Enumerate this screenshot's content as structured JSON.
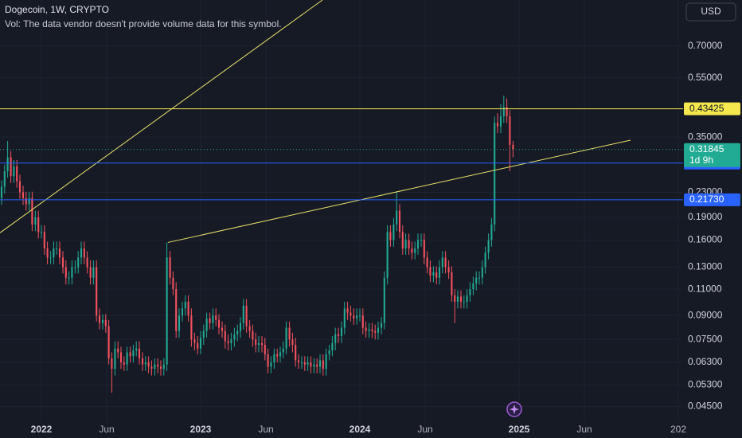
{
  "chart_data": {
    "type": "candlestick",
    "title": "Dogecoin, 1W, CRYPTO",
    "subtitle": "Vol: The data vendor doesn't provide volume data for this symbol.",
    "currency": "USD",
    "log_y": true,
    "grid": true,
    "up_color": "#22ab94",
    "down_color": "#f7525f",
    "xlim": [
      2021.74,
      2026.03
    ],
    "xticks": [
      2022,
      {
        "value": 2022.41,
        "label": "Jun"
      },
      2023,
      {
        "value": 2023.41,
        "label": "Jun"
      },
      2024,
      {
        "value": 2024.41,
        "label": "Jun"
      },
      2025,
      {
        "value": 2025.41,
        "label": "Jun"
      },
      {
        "value": 2026,
        "label": "202"
      }
    ],
    "ylim": [
      0.04,
      0.994
    ],
    "yticks": [
      {
        "value": 0.7,
        "label": "0.70000"
      },
      {
        "value": 0.55,
        "label": "0.55000"
      },
      {
        "value": 0.35,
        "label": "0.35000"
      },
      {
        "value": 0.23,
        "label": "0.23000"
      },
      {
        "value": 0.19,
        "label": "0.19000"
      },
      {
        "value": 0.16,
        "label": "0.16000"
      },
      {
        "value": 0.13,
        "label": "0.13000"
      },
      {
        "value": 0.11,
        "label": "0.11000"
      },
      {
        "value": 0.09,
        "label": "0.09000"
      },
      {
        "value": 0.075,
        "label": "0.07500"
      },
      {
        "value": 0.063,
        "label": "0.06300"
      },
      {
        "value": 0.053,
        "label": "0.05300"
      },
      {
        "value": 0.045,
        "label": "0.04500"
      }
    ],
    "x": [
      2021.75,
      2021.769,
      2021.788,
      2021.808,
      2021.827,
      2021.846,
      2021.865,
      2021.885,
      2021.904,
      2021.923,
      2021.942,
      2021.962,
      2021.981,
      2022.0,
      2022.019,
      2022.038,
      2022.058,
      2022.077,
      2022.096,
      2022.115,
      2022.135,
      2022.154,
      2022.173,
      2022.192,
      2022.212,
      2022.231,
      2022.25,
      2022.269,
      2022.288,
      2022.308,
      2022.327,
      2022.346,
      2022.365,
      2022.385,
      2022.404,
      2022.423,
      2022.442,
      2022.462,
      2022.481,
      2022.5,
      2022.519,
      2022.538,
      2022.558,
      2022.577,
      2022.596,
      2022.615,
      2022.635,
      2022.654,
      2022.673,
      2022.692,
      2022.712,
      2022.731,
      2022.75,
      2022.769,
      2022.788,
      2022.808,
      2022.827,
      2022.846,
      2022.865,
      2022.885,
      2022.904,
      2022.923,
      2022.942,
      2022.962,
      2022.981,
      2023.0,
      2023.019,
      2023.038,
      2023.058,
      2023.077,
      2023.096,
      2023.115,
      2023.135,
      2023.154,
      2023.173,
      2023.192,
      2023.212,
      2023.231,
      2023.25,
      2023.269,
      2023.288,
      2023.308,
      2023.327,
      2023.346,
      2023.365,
      2023.385,
      2023.404,
      2023.423,
      2023.442,
      2023.462,
      2023.481,
      2023.5,
      2023.519,
      2023.538,
      2023.558,
      2023.577,
      2023.596,
      2023.615,
      2023.635,
      2023.654,
      2023.673,
      2023.692,
      2023.712,
      2023.731,
      2023.75,
      2023.769,
      2023.788,
      2023.808,
      2023.827,
      2023.846,
      2023.865,
      2023.885,
      2023.904,
      2023.923,
      2023.942,
      2023.962,
      2023.981,
      2024.0,
      2024.019,
      2024.038,
      2024.058,
      2024.077,
      2024.096,
      2024.115,
      2024.135,
      2024.154,
      2024.173,
      2024.192,
      2024.212,
      2024.231,
      2024.25,
      2024.269,
      2024.288,
      2024.308,
      2024.327,
      2024.346,
      2024.365,
      2024.385,
      2024.404,
      2024.423,
      2024.442,
      2024.462,
      2024.481,
      2024.5,
      2024.519,
      2024.538,
      2024.558,
      2024.577,
      2024.596,
      2024.615,
      2024.635,
      2024.654,
      2024.673,
      2024.692,
      2024.712,
      2024.731,
      2024.75,
      2024.769,
      2024.788,
      2024.808,
      2024.827,
      2024.846,
      2024.865,
      2024.885,
      2024.904,
      2024.923,
      2024.942,
      2024.962
    ],
    "open": [
      0.22,
      0.24,
      0.27,
      0.3,
      0.26,
      0.28,
      0.25,
      0.23,
      0.22,
      0.21,
      0.22,
      0.18,
      0.19,
      0.17,
      0.17,
      0.15,
      0.14,
      0.14,
      0.15,
      0.15,
      0.14,
      0.13,
      0.12,
      0.12,
      0.13,
      0.13,
      0.14,
      0.15,
      0.14,
      0.13,
      0.12,
      0.13,
      0.09,
      0.085,
      0.087,
      0.083,
      0.065,
      0.06,
      0.07,
      0.068,
      0.063,
      0.062,
      0.068,
      0.066,
      0.069,
      0.07,
      0.065,
      0.062,
      0.063,
      0.061,
      0.06,
      0.062,
      0.061,
      0.06,
      0.062,
      0.14,
      0.12,
      0.11,
      0.08,
      0.09,
      0.095,
      0.1,
      0.09,
      0.075,
      0.073,
      0.07,
      0.076,
      0.08,
      0.088,
      0.085,
      0.09,
      0.087,
      0.082,
      0.08,
      0.074,
      0.073,
      0.075,
      0.078,
      0.08,
      0.085,
      0.097,
      0.083,
      0.08,
      0.075,
      0.072,
      0.073,
      0.072,
      0.067,
      0.061,
      0.063,
      0.067,
      0.066,
      0.068,
      0.07,
      0.082,
      0.075,
      0.072,
      0.064,
      0.063,
      0.063,
      0.062,
      0.063,
      0.061,
      0.062,
      0.061,
      0.064,
      0.06,
      0.067,
      0.069,
      0.073,
      0.078,
      0.077,
      0.082,
      0.095,
      0.092,
      0.09,
      0.088,
      0.09,
      0.09,
      0.082,
      0.08,
      0.081,
      0.08,
      0.079,
      0.082,
      0.085,
      0.12,
      0.17,
      0.16,
      0.18,
      0.2,
      0.17,
      0.15,
      0.16,
      0.15,
      0.145,
      0.15,
      0.16,
      0.16,
      0.14,
      0.13,
      0.122,
      0.125,
      0.12,
      0.13,
      0.14,
      0.13,
      0.125,
      0.105,
      0.1,
      0.104,
      0.1,
      0.1,
      0.105,
      0.11,
      0.115,
      0.12,
      0.12,
      0.13,
      0.145,
      0.16,
      0.18,
      0.39,
      0.38,
      0.41,
      0.44,
      0.41,
      0.33
    ],
    "high": [
      0.252,
      0.284,
      0.34,
      0.315,
      0.294,
      0.294,
      0.263,
      0.242,
      0.231,
      0.231,
      0.231,
      0.2,
      0.2,
      0.179,
      0.179,
      0.158,
      0.147,
      0.158,
      0.158,
      0.158,
      0.147,
      0.137,
      0.126,
      0.137,
      0.137,
      0.147,
      0.158,
      0.158,
      0.147,
      0.137,
      0.137,
      0.137,
      0.095,
      0.091,
      0.091,
      0.087,
      0.068,
      0.074,
      0.074,
      0.071,
      0.066,
      0.071,
      0.071,
      0.072,
      0.074,
      0.074,
      0.068,
      0.066,
      0.066,
      0.064,
      0.065,
      0.065,
      0.064,
      0.065,
      0.157,
      0.147,
      0.126,
      0.116,
      0.095,
      0.1,
      0.105,
      0.105,
      0.095,
      0.079,
      0.077,
      0.08,
      0.084,
      0.092,
      0.092,
      0.095,
      0.095,
      0.091,
      0.086,
      0.084,
      0.078,
      0.079,
      0.082,
      0.084,
      0.089,
      0.102,
      0.102,
      0.087,
      0.084,
      0.079,
      0.077,
      0.077,
      0.076,
      0.07,
      0.066,
      0.07,
      0.07,
      0.071,
      0.074,
      0.086,
      0.086,
      0.079,
      0.076,
      0.067,
      0.066,
      0.066,
      0.066,
      0.066,
      0.065,
      0.065,
      0.067,
      0.067,
      0.07,
      0.072,
      0.077,
      0.082,
      0.082,
      0.086,
      0.1,
      0.1,
      0.097,
      0.095,
      0.095,
      0.095,
      0.095,
      0.086,
      0.085,
      0.085,
      0.084,
      0.086,
      0.089,
      0.126,
      0.179,
      0.179,
      0.189,
      0.23,
      0.21,
      0.179,
      0.168,
      0.168,
      0.158,
      0.158,
      0.168,
      0.168,
      0.168,
      0.147,
      0.137,
      0.131,
      0.131,
      0.137,
      0.147,
      0.147,
      0.137,
      0.131,
      0.11,
      0.109,
      0.109,
      0.105,
      0.11,
      0.116,
      0.121,
      0.126,
      0.126,
      0.137,
      0.152,
      0.168,
      0.189,
      0.41,
      0.42,
      0.45,
      0.48,
      0.47,
      0.43,
      0.34
    ],
    "low": [
      0.209,
      0.228,
      0.257,
      0.247,
      0.247,
      0.238,
      0.219,
      0.209,
      0.2,
      0.2,
      0.171,
      0.171,
      0.162,
      0.162,
      0.143,
      0.133,
      0.133,
      0.133,
      0.143,
      0.133,
      0.124,
      0.114,
      0.114,
      0.114,
      0.124,
      0.124,
      0.133,
      0.133,
      0.124,
      0.114,
      0.114,
      0.086,
      0.081,
      0.081,
      0.079,
      0.062,
      0.05,
      0.057,
      0.065,
      0.06,
      0.059,
      0.059,
      0.063,
      0.063,
      0.066,
      0.062,
      0.059,
      0.059,
      0.058,
      0.057,
      0.057,
      0.058,
      0.057,
      0.057,
      0.059,
      0.114,
      0.105,
      0.076,
      0.076,
      0.086,
      0.09,
      0.086,
      0.071,
      0.069,
      0.067,
      0.067,
      0.072,
      0.076,
      0.081,
      0.081,
      0.083,
      0.078,
      0.076,
      0.07,
      0.069,
      0.069,
      0.071,
      0.074,
      0.076,
      0.081,
      0.079,
      0.076,
      0.071,
      0.068,
      0.068,
      0.068,
      0.064,
      0.058,
      0.058,
      0.06,
      0.063,
      0.063,
      0.065,
      0.067,
      0.071,
      0.068,
      0.061,
      0.06,
      0.06,
      0.059,
      0.059,
      0.058,
      0.058,
      0.058,
      0.058,
      0.057,
      0.057,
      0.064,
      0.066,
      0.069,
      0.073,
      0.073,
      0.078,
      0.087,
      0.086,
      0.084,
      0.084,
      0.086,
      0.078,
      0.076,
      0.076,
      0.076,
      0.075,
      0.075,
      0.078,
      0.081,
      0.114,
      0.152,
      0.152,
      0.171,
      0.162,
      0.143,
      0.143,
      0.143,
      0.138,
      0.138,
      0.143,
      0.152,
      0.133,
      0.124,
      0.116,
      0.116,
      0.114,
      0.114,
      0.124,
      0.124,
      0.119,
      0.1,
      0.085,
      0.095,
      0.095,
      0.095,
      0.095,
      0.1,
      0.105,
      0.109,
      0.114,
      0.114,
      0.124,
      0.138,
      0.152,
      0.171,
      0.361,
      0.361,
      0.39,
      0.39,
      0.27,
      0.3
    ],
    "close": [
      0.24,
      0.27,
      0.3,
      0.26,
      0.28,
      0.25,
      0.23,
      0.22,
      0.21,
      0.22,
      0.18,
      0.19,
      0.17,
      0.17,
      0.15,
      0.14,
      0.14,
      0.15,
      0.15,
      0.14,
      0.13,
      0.12,
      0.12,
      0.13,
      0.13,
      0.14,
      0.15,
      0.14,
      0.13,
      0.12,
      0.13,
      0.09,
      0.085,
      0.087,
      0.083,
      0.065,
      0.06,
      0.07,
      0.068,
      0.063,
      0.062,
      0.068,
      0.066,
      0.069,
      0.07,
      0.065,
      0.062,
      0.063,
      0.061,
      0.06,
      0.062,
      0.061,
      0.06,
      0.062,
      0.14,
      0.12,
      0.11,
      0.08,
      0.09,
      0.095,
      0.1,
      0.09,
      0.075,
      0.073,
      0.07,
      0.076,
      0.08,
      0.088,
      0.085,
      0.09,
      0.087,
      0.082,
      0.08,
      0.074,
      0.073,
      0.075,
      0.078,
      0.08,
      0.085,
      0.097,
      0.083,
      0.08,
      0.075,
      0.072,
      0.073,
      0.072,
      0.067,
      0.061,
      0.063,
      0.067,
      0.066,
      0.068,
      0.07,
      0.082,
      0.075,
      0.072,
      0.064,
      0.063,
      0.063,
      0.062,
      0.063,
      0.061,
      0.062,
      0.061,
      0.064,
      0.06,
      0.067,
      0.069,
      0.073,
      0.078,
      0.077,
      0.082,
      0.095,
      0.092,
      0.09,
      0.088,
      0.09,
      0.09,
      0.082,
      0.08,
      0.081,
      0.08,
      0.079,
      0.082,
      0.085,
      0.12,
      0.17,
      0.16,
      0.18,
      0.2,
      0.17,
      0.15,
      0.16,
      0.15,
      0.145,
      0.15,
      0.16,
      0.16,
      0.14,
      0.13,
      0.122,
      0.125,
      0.12,
      0.13,
      0.14,
      0.13,
      0.125,
      0.105,
      0.1,
      0.104,
      0.1,
      0.1,
      0.105,
      0.11,
      0.115,
      0.12,
      0.12,
      0.13,
      0.145,
      0.16,
      0.18,
      0.39,
      0.38,
      0.41,
      0.44,
      0.41,
      0.33,
      0.31845
    ],
    "countdown": "1d 9h",
    "hlines": [
      {
        "value": 0.43425,
        "color": "#f5e74e"
      },
      {
        "value": 0.28732,
        "color": "#2962ff"
      },
      {
        "value": 0.2173,
        "label": "0.21730",
        "color": "#2962ff"
      }
    ],
    "trendlines": [
      {
        "points": [
          [
            2021.74,
            0.169
          ],
          [
            2023.765,
            0.994
          ]
        ],
        "color": "#e8e36a"
      },
      {
        "points": [
          [
            2022.795,
            0.157
          ],
          [
            2025.7,
            0.342
          ]
        ],
        "color": "#e8e36a"
      }
    ]
  }
}
